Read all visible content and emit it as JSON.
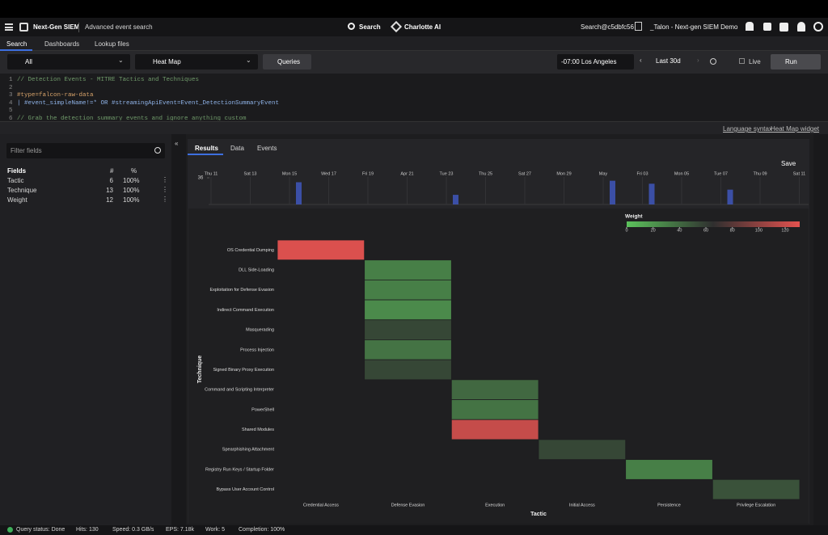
{
  "ui": {
    "app_name": "Next-Gen SIEM",
    "page_title": "Advanced event search",
    "search": "Search",
    "charlotte": "Charlotte AI",
    "user": "Search@c5dbfc56",
    "tenant": "_Talon - Next-gen SIEM Demo",
    "tabs": [
      "Search",
      "Dashboards",
      "Lookup files"
    ],
    "repo": "All",
    "widget": "Heat Map",
    "queries": "Queries",
    "timezone": "-07:00 Los Angeles",
    "range": "Last 30d",
    "live": "Live",
    "run": "Run",
    "code": [
      {
        "line": "1",
        "text": "// Detection Events - MITRE Tactics and Techniques"
      },
      {
        "line": "2"
      },
      {
        "line": "3",
        "text": "#type=falcon-raw-data"
      },
      {
        "line": "4",
        "text": "| #event_simpleName!=* OR #streamingApiEvent=Event_DetectionSummaryEvent"
      },
      {
        "line": "5"
      },
      {
        "line": "6",
        "text": "// Grab the detection summary events and ignore anything custom"
      }
    ],
    "links": [
      "Language syntax",
      "Heat Map widget"
    ],
    "filter_placeholder": "Filter fields",
    "fields_header": [
      "Fields",
      "#",
      "%"
    ],
    "fields": [
      [
        "Tactic",
        "6",
        "100%"
      ],
      [
        "Technique",
        "13",
        "100%"
      ],
      [
        "Weight",
        "12",
        "100%"
      ]
    ],
    "result_tabs": [
      "Results",
      "Data",
      "Events"
    ],
    "save": "Save",
    "status": [
      "Query status: Done",
      "Hits: 130",
      "Speed: 0.3 GB/s",
      "EPS: 7.18k",
      "Work: 5",
      "Completion: 100%"
    ]
  },
  "chart_data": [
    {
      "type": "bar",
      "categories": [
        "Thu 11",
        "Sat 13",
        "Mon 15",
        "Wed 17",
        "Fri 19",
        "Apr 21",
        "Tue 23",
        "Thu 25",
        "Sat 27",
        "Mon 29",
        "May",
        "Fri 03",
        "Mon 05",
        "Tue 07",
        "Thu 09",
        "Sat 11"
      ],
      "values": [
        null,
        null,
        30,
        null,
        null,
        null,
        13,
        null,
        null,
        null,
        32,
        28,
        null,
        20,
        null,
        null
      ],
      "ylim": [
        0,
        36
      ],
      "yticks": [
        36
      ],
      "color": "#3b4fa6"
    },
    {
      "type": "heatmap",
      "x_label": "Tactic",
      "y_label": "Technique",
      "legend_title": "Weight",
      "categories": [
        "Credential Access",
        "Defense Evasion",
        "Execution",
        "Initial Access",
        "Persistence",
        "Privilege Escalation"
      ],
      "rows": [
        "OS Credential Dumping",
        "DLL Side-Loading",
        "Exploitation for Defense Evasion",
        "Indirect Command Execution",
        "Masquerading",
        "Process Injection",
        "Signed Binary Proxy Execution",
        "Command and Scripting Interpreter",
        "PowerShell",
        "Shared Modules",
        "Spearphishing Attachment",
        "Registry Run Keys / Startup Folder",
        "Bypass User Account Control"
      ],
      "values": [
        [
          128,
          null,
          null,
          null,
          null,
          null
        ],
        [
          null,
          30,
          null,
          null,
          null,
          null
        ],
        [
          null,
          30,
          null,
          null,
          null,
          null
        ],
        [
          null,
          25,
          null,
          null,
          null,
          null
        ],
        [
          null,
          55,
          null,
          null,
          null,
          null
        ],
        [
          null,
          35,
          null,
          null,
          null,
          null
        ],
        [
          null,
          55,
          null,
          null,
          null,
          null
        ],
        [
          null,
          null,
          40,
          null,
          null,
          null
        ],
        [
          null,
          null,
          35,
          null,
          null,
          null
        ],
        [
          null,
          null,
          120,
          null,
          null,
          null
        ],
        [
          null,
          null,
          null,
          55,
          null,
          null
        ],
        [
          null,
          null,
          null,
          null,
          30,
          null
        ],
        [
          null,
          null,
          null,
          null,
          null,
          50
        ]
      ],
      "clim": [
        0,
        131
      ],
      "cticks": [
        0,
        20,
        40,
        60,
        80,
        100,
        120
      ],
      "colorscale": [
        "#5cc25c",
        "#2f2f2f",
        "#e3524f"
      ]
    }
  ]
}
